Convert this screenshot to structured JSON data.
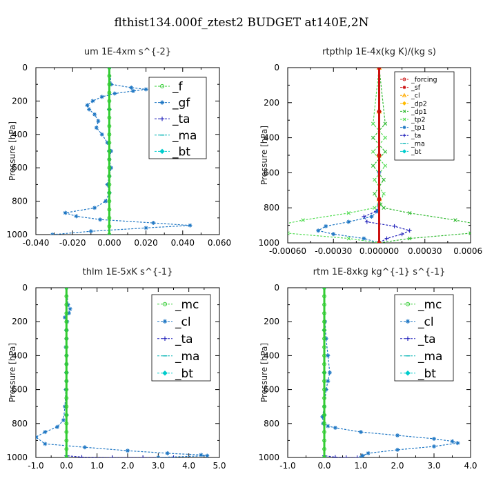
{
  "figure_title": "flthist134.000f_ztest2  BUDGET at140E,2N",
  "chart_data": [
    {
      "type": "line",
      "title": "um   1E-4xm s^{-2}",
      "ylabel": "Pressure [hPa]",
      "xlim": [
        -0.04,
        0.06
      ],
      "ylim": [
        1000,
        0
      ],
      "xticks": [
        "-0.040",
        "-0.020",
        "0.000",
        "0.020",
        "0.040",
        "0.060"
      ],
      "xtick_values": [
        -0.04,
        -0.02,
        0.0,
        0.02,
        0.04,
        0.06
      ],
      "yticks": [
        "0",
        "200",
        "400",
        "600",
        "800",
        "1000"
      ],
      "ytick_values": [
        0,
        200,
        400,
        600,
        800,
        1000
      ],
      "legend_size": "large",
      "series": [
        {
          "name": "_f",
          "color": "#33cc33",
          "marker": "circle",
          "x": [
            0,
            0,
            0,
            0,
            0,
            0,
            0,
            0,
            0,
            0,
            0,
            0,
            0,
            0,
            0,
            0,
            0,
            0,
            0,
            0,
            0
          ],
          "y": [
            0,
            50,
            100,
            150,
            200,
            250,
            300,
            350,
            400,
            450,
            500,
            550,
            600,
            650,
            700,
            750,
            800,
            850,
            900,
            950,
            1000
          ]
        },
        {
          "name": "_gf",
          "color": "#1f77c4",
          "marker": "star",
          "x": [
            0,
            0.001,
            0.012,
            0.02,
            0.013,
            0.003,
            -0.004,
            -0.009,
            -0.012,
            -0.011,
            -0.008,
            -0.006,
            -0.007,
            -0.004,
            -0.001,
            0.001,
            0.0,
            0.001,
            0.0,
            -0.001,
            0.0,
            -0.002,
            -0.008,
            -0.024,
            -0.018,
            -0.005,
            0.024,
            0.044,
            0.02,
            -0.01,
            -0.031
          ],
          "y": [
            0,
            100,
            120,
            130,
            140,
            155,
            175,
            200,
            225,
            250,
            280,
            320,
            360,
            400,
            450,
            500,
            550,
            600,
            650,
            700,
            750,
            800,
            840,
            870,
            890,
            910,
            930,
            945,
            960,
            980,
            1000
          ]
        },
        {
          "name": "_ta",
          "color": "#2222bb",
          "marker": "plus",
          "x": [
            0,
            0,
            0,
            0,
            0
          ],
          "y": [
            0,
            250,
            500,
            750,
            1000
          ]
        },
        {
          "name": "_ma",
          "color": "#00b3b3",
          "marker": "dash",
          "x": [
            0,
            0,
            0,
            0,
            0
          ],
          "y": [
            0,
            250,
            500,
            750,
            1000
          ]
        },
        {
          "name": "_bt",
          "color": "#00cccc",
          "marker": "diamond",
          "x": [
            0,
            0,
            0,
            0,
            0
          ],
          "y": [
            0,
            250,
            500,
            750,
            1000
          ]
        }
      ]
    },
    {
      "type": "line",
      "title": "rtpthlp   1E-4x(kg K)/(kg s)",
      "ylabel": "Pressure [hPa]",
      "xlim": [
        -0.0006,
        0.0006
      ],
      "ylim": [
        1000,
        0
      ],
      "xticks": [
        "-0.00060",
        "-0.00030",
        "0.000000",
        "0.00030",
        "0.00060"
      ],
      "xtick_values": [
        -0.0006,
        -0.0003,
        0.0,
        0.0003,
        0.0006
      ],
      "yticks": [
        "0",
        "200",
        "400",
        "600",
        "800",
        "1000"
      ],
      "ytick_values": [
        0,
        200,
        400,
        600,
        800,
        1000
      ],
      "legend_size": "small",
      "series": [
        {
          "name": "_forcing",
          "color": "#cc1111",
          "marker": "circle",
          "x": [
            0,
            0,
            0,
            0,
            0
          ],
          "y": [
            0,
            250,
            500,
            750,
            1000
          ]
        },
        {
          "name": "_sf",
          "color": "#cc1111",
          "marker": "star",
          "x": [
            0,
            0,
            0,
            0,
            0
          ],
          "y": [
            0,
            250,
            500,
            750,
            1000
          ]
        },
        {
          "name": "_cl",
          "color": "#ffaa00",
          "marker": "triangle",
          "x": [
            0,
            0,
            0,
            0,
            0
          ],
          "y": [
            0,
            250,
            500,
            750,
            1000
          ]
        },
        {
          "name": "_dp2",
          "color": "#ffbb00",
          "marker": "diamond",
          "x": [
            0,
            0,
            0,
            0,
            0
          ],
          "y": [
            0,
            250,
            500,
            750,
            1000
          ]
        },
        {
          "name": "_dp1",
          "color": "#33bb33",
          "marker": "x",
          "x": [
            0,
            4e-05,
            -4e-05,
            4e-05,
            -4e-05,
            3e-05,
            -3e-05,
            1e-05,
            3e-05,
            0.0002,
            0.0005,
            0.00078,
            0.0006,
            0.0002,
            0.0
          ],
          "y": [
            0,
            320,
            400,
            480,
            560,
            640,
            720,
            780,
            800,
            830,
            870,
            915,
            945,
            975,
            1000
          ]
        },
        {
          "name": "_tp2",
          "color": "#55dd55",
          "marker": "x",
          "x": [
            0,
            -4e-05,
            4e-05,
            -4e-05,
            4e-05,
            -3e-05,
            3e-05,
            0.0,
            -3e-05,
            -0.0002,
            -0.0005,
            -0.00075,
            -0.0006,
            -0.0002,
            0.0
          ],
          "y": [
            0,
            320,
            400,
            480,
            560,
            640,
            720,
            780,
            800,
            830,
            870,
            915,
            945,
            975,
            1000
          ]
        },
        {
          "name": "_tp1",
          "color": "#1f77c4",
          "marker": "star",
          "x": [
            0,
            0,
            0,
            -1e-05,
            -5e-05,
            -0.0002,
            -0.00035,
            -0.0004,
            -0.0003,
            -0.0001,
            0.0
          ],
          "y": [
            0,
            600,
            780,
            820,
            850,
            880,
            905,
            930,
            950,
            975,
            1000
          ]
        },
        {
          "name": "_ta",
          "color": "#2222bb",
          "marker": "plus",
          "x": [
            0,
            0,
            0,
            -2e-05,
            -0.0001,
            -8e-05,
            0.0001,
            0.0002,
            0.00015,
            5e-05,
            0.0
          ],
          "y": [
            0,
            600,
            780,
            820,
            850,
            880,
            905,
            930,
            950,
            975,
            1000
          ]
        },
        {
          "name": "_ma",
          "color": "#00b3b3",
          "marker": "dash",
          "x": [
            0,
            0,
            0,
            0,
            0
          ],
          "y": [
            0,
            250,
            500,
            750,
            1000
          ]
        },
        {
          "name": "_bt",
          "color": "#00cccc",
          "marker": "diamond",
          "x": [
            0,
            0,
            0,
            0,
            0
          ],
          "y": [
            0,
            250,
            500,
            750,
            1000
          ]
        }
      ]
    },
    {
      "type": "line",
      "title": "thlm   1E-5xK s^{-1}",
      "ylabel": "Pressure [hPa]",
      "xlim": [
        -1.0,
        5.0
      ],
      "ylim": [
        1000,
        0
      ],
      "xticks": [
        "-1.0",
        "0.0",
        "1.0",
        "2.0",
        "3.0",
        "4.0",
        "5.0"
      ],
      "xtick_values": [
        -1,
        0,
        1,
        2,
        3,
        4,
        5
      ],
      "yticks": [
        "0",
        "200",
        "400",
        "600",
        "800",
        "1000"
      ],
      "ytick_values": [
        0,
        200,
        400,
        600,
        800,
        1000
      ],
      "legend_size": "large",
      "series": [
        {
          "name": "_mc",
          "color": "#33cc33",
          "marker": "circle",
          "x": [
            0,
            0,
            0,
            0,
            0,
            0,
            0,
            0,
            0,
            0,
            0,
            0,
            0,
            0,
            0,
            0,
            0,
            0,
            0,
            0,
            0
          ],
          "y": [
            0,
            50,
            100,
            150,
            200,
            250,
            300,
            350,
            400,
            450,
            500,
            550,
            600,
            650,
            700,
            750,
            800,
            850,
            900,
            950,
            1000
          ]
        },
        {
          "name": "_cl",
          "color": "#1f77c4",
          "marker": "star",
          "x": [
            0,
            0.05,
            0.12,
            0.08,
            -0.05,
            0.02,
            0.0,
            0.0,
            -0.02,
            0.0,
            0.0,
            0.0,
            0.0,
            -0.02,
            -0.05,
            -0.1,
            -0.3,
            -0.7,
            -1.0,
            -0.7,
            0.6,
            2.0,
            3.3,
            4.4,
            4.6,
            3.0
          ],
          "y": [
            0,
            100,
            125,
            150,
            175,
            200,
            250,
            300,
            350,
            400,
            450,
            500,
            550,
            600,
            700,
            780,
            820,
            850,
            880,
            920,
            940,
            960,
            975,
            985,
            990,
            1000
          ]
        },
        {
          "name": "_ta",
          "color": "#2222bb",
          "marker": "plus",
          "x": [
            0,
            0,
            0,
            0,
            0,
            0.5,
            1.5,
            2.5,
            3.5
          ],
          "y": [
            0,
            250,
            500,
            750,
            990,
            998,
            1000,
            1000,
            1000
          ]
        },
        {
          "name": "_ma",
          "color": "#00b3b3",
          "marker": "dash",
          "x": [
            0,
            0,
            0,
            0,
            0
          ],
          "y": [
            0,
            250,
            500,
            750,
            1000
          ]
        },
        {
          "name": "_bt",
          "color": "#00cccc",
          "marker": "diamond",
          "x": [
            0,
            0,
            0,
            0,
            0
          ],
          "y": [
            0,
            250,
            500,
            750,
            1000
          ]
        }
      ]
    },
    {
      "type": "line",
      "title": "rtm   1E-8xkg kg^{-1} s^{-1}",
      "ylabel": "Pressure [hPa]",
      "xlim": [
        -1.0,
        4.0
      ],
      "ylim": [
        1000,
        0
      ],
      "xticks": [
        "-1.0",
        "0.0",
        "1.0",
        "2.0",
        "3.0",
        "4.0"
      ],
      "xtick_values": [
        -1,
        0,
        1,
        2,
        3,
        4
      ],
      "yticks": [
        "0",
        "200",
        "400",
        "600",
        "800",
        "1000"
      ],
      "ytick_values": [
        0,
        200,
        400,
        600,
        800,
        1000
      ],
      "legend_size": "large",
      "series": [
        {
          "name": "_mc",
          "color": "#33cc33",
          "marker": "circle",
          "x": [
            0,
            0,
            0,
            0,
            0,
            0,
            0,
            0,
            0,
            0,
            0,
            0,
            0,
            0,
            0,
            0,
            0,
            0,
            0,
            0,
            0
          ],
          "y": [
            0,
            50,
            100,
            150,
            200,
            250,
            300,
            350,
            400,
            450,
            500,
            550,
            600,
            650,
            700,
            750,
            800,
            850,
            900,
            950,
            1000
          ]
        },
        {
          "name": "_cl",
          "color": "#1f77c4",
          "marker": "star",
          "x": [
            0,
            0.02,
            0.05,
            0.1,
            0.15,
            0.1,
            0.05,
            0.0,
            -0.05,
            -0.03,
            0.1,
            0.3,
            1.0,
            2.0,
            3.0,
            3.5,
            3.65,
            3.0,
            2.0,
            1.2,
            1.05,
            1.0
          ],
          "y": [
            0,
            200,
            300,
            400,
            500,
            550,
            600,
            700,
            760,
            800,
            815,
            825,
            850,
            870,
            890,
            905,
            915,
            935,
            955,
            975,
            990,
            1000
          ]
        },
        {
          "name": "_ta",
          "color": "#2222bb",
          "marker": "plus",
          "x": [
            0,
            0,
            0,
            0,
            0,
            0.3,
            0.6,
            0.9
          ],
          "y": [
            0,
            250,
            500,
            750,
            990,
            998,
            1000,
            1000
          ]
        },
        {
          "name": "_ma",
          "color": "#00b3b3",
          "marker": "dash",
          "x": [
            0,
            0,
            0,
            0,
            0
          ],
          "y": [
            0,
            250,
            500,
            750,
            1000
          ]
        },
        {
          "name": "_bt",
          "color": "#00cccc",
          "marker": "diamond",
          "x": [
            0,
            0,
            0,
            0,
            0
          ],
          "y": [
            0,
            250,
            500,
            750,
            1000
          ]
        }
      ]
    }
  ]
}
